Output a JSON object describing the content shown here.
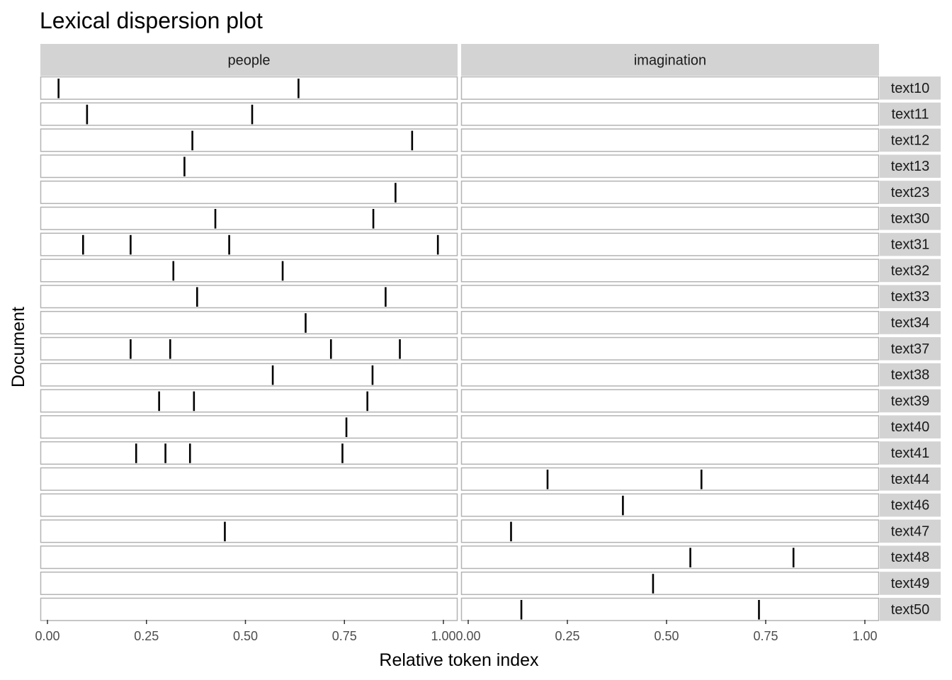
{
  "chart_data": {
    "type": "scatter",
    "title": "Lexical dispersion plot",
    "xlabel": "Relative token index",
    "ylabel": "Document",
    "xlim": [
      0,
      1
    ],
    "x_ticks": [
      "0.00",
      "0.25",
      "0.50",
      "0.75",
      "1.00"
    ],
    "x_tick_values": [
      0,
      0.25,
      0.5,
      0.75,
      1.0
    ],
    "marker": "vertical-line",
    "colors": {
      "strip_fill": "#d3d3d3",
      "panel_border": "#b3b3b3",
      "mark": "#000000"
    },
    "facets": [
      "people",
      "imagination"
    ],
    "documents": [
      "text10",
      "text11",
      "text12",
      "text13",
      "text23",
      "text30",
      "text31",
      "text32",
      "text33",
      "text34",
      "text37",
      "text38",
      "text39",
      "text40",
      "text41",
      "text44",
      "text46",
      "text47",
      "text48",
      "text49",
      "text50"
    ],
    "series": [
      {
        "name": "people",
        "points": {
          "text10": [
            0.028,
            0.634
          ],
          "text11": [
            0.1,
            0.517
          ],
          "text12": [
            0.366,
            0.921
          ],
          "text13": [
            0.346
          ],
          "text23": [
            0.879
          ],
          "text30": [
            0.424,
            0.823
          ],
          "text31": [
            0.09,
            0.21,
            0.459,
            0.986
          ],
          "text32": [
            0.318,
            0.594
          ],
          "text33": [
            0.378,
            0.854
          ],
          "text34": [
            0.652
          ],
          "text37": [
            0.21,
            0.31,
            0.716,
            0.89
          ],
          "text38": [
            0.569,
            0.821
          ],
          "text39": [
            0.282,
            0.37,
            0.808
          ],
          "text40": [
            0.755
          ],
          "text41": [
            0.224,
            0.298,
            0.36,
            0.745
          ],
          "text44": [],
          "text46": [],
          "text47": [
            0.448
          ],
          "text48": [],
          "text49": [],
          "text50": []
        }
      },
      {
        "name": "imagination",
        "points": {
          "text10": [],
          "text11": [],
          "text12": [],
          "text13": [],
          "text23": [],
          "text30": [],
          "text31": [],
          "text32": [],
          "text33": [],
          "text34": [],
          "text37": [],
          "text38": [],
          "text39": [],
          "text40": [],
          "text41": [],
          "text44": [
            0.2,
            0.588
          ],
          "text46": [
            0.39
          ],
          "text47": [
            0.108
          ],
          "text48": [
            0.56,
            0.82
          ],
          "text49": [
            0.466
          ],
          "text50": [
            0.134,
            0.733
          ]
        }
      }
    ]
  }
}
